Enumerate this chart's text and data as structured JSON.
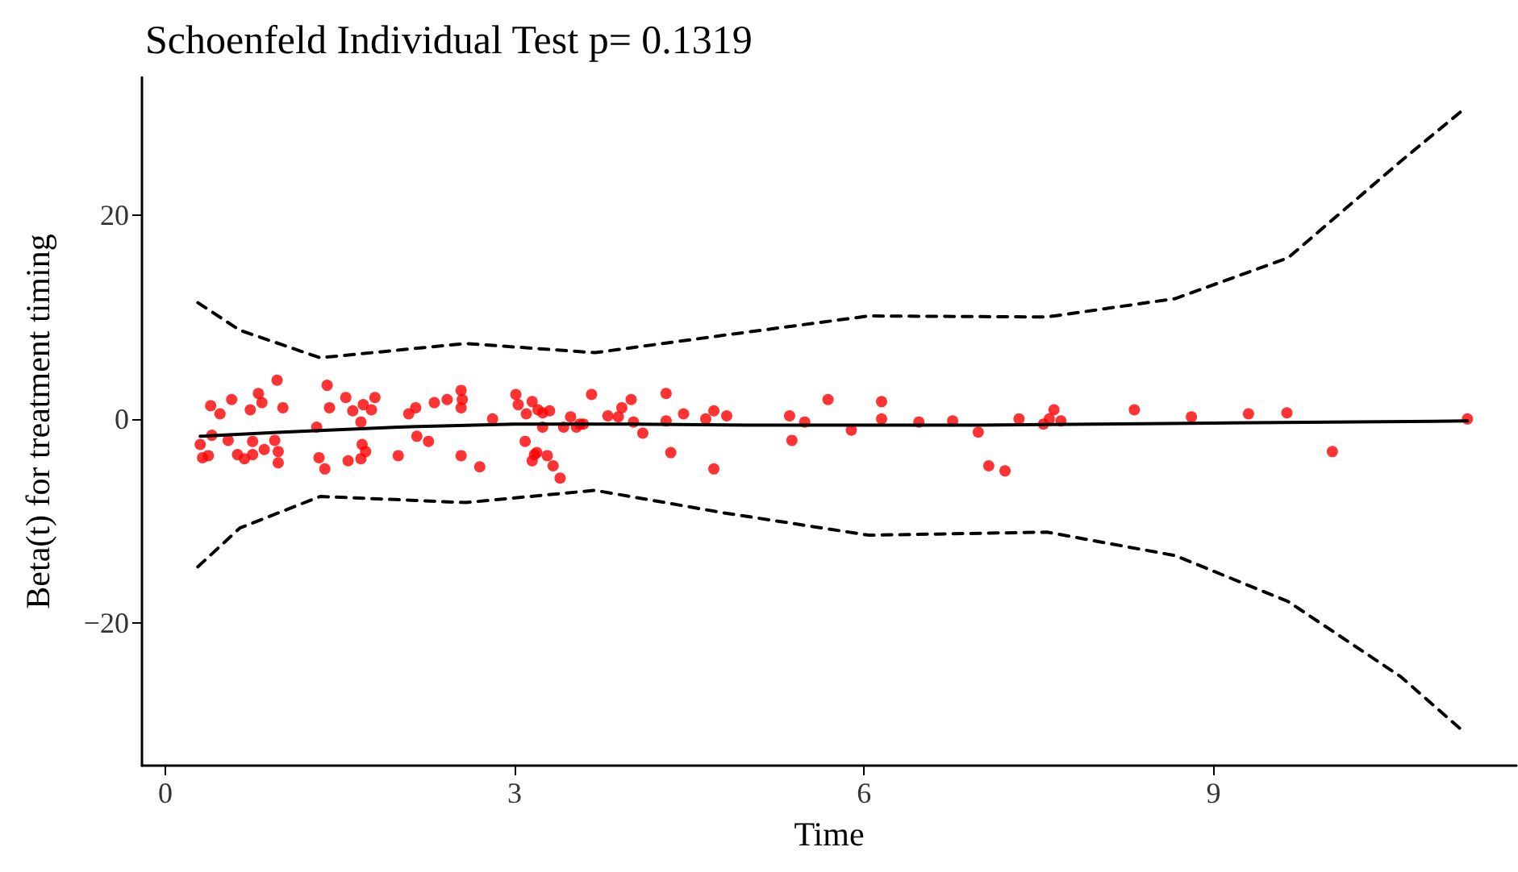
{
  "chart_data": {
    "type": "scatter",
    "title": "Schoenfeld Individual Test p= 0.1319",
    "xlabel": "Time",
    "ylabel": "Beta(t) for treatment timing",
    "xlim": [
      -0.2,
      11.6
    ],
    "ylim": [
      -34,
      33.5
    ],
    "xticks": [
      0,
      3,
      6,
      9
    ],
    "yticks": [
      {
        "value": -20,
        "label": "−20"
      },
      0,
      20
    ],
    "grid": false,
    "series": [
      {
        "color": "#ff0000",
        "marker": "circle",
        "x": [
          0.39,
          0.47,
          0.57,
          0.73,
          0.8,
          0.83,
          0.96,
          1.01,
          0.4,
          0.3,
          0.32,
          0.37,
          0.54,
          0.62,
          0.68,
          0.75,
          0.75,
          0.85,
          0.94,
          0.97,
          0.97,
          1.3,
          1.32,
          1.37,
          1.39,
          1.41,
          1.55,
          1.61,
          1.68,
          1.7,
          1.77,
          1.8,
          1.69,
          1.72,
          1.57,
          1.68,
          2.0,
          2.09,
          2.15,
          2.16,
          2.26,
          2.31,
          2.42,
          2.54,
          2.55,
          2.54,
          2.54,
          2.7,
          2.81,
          3.01,
          3.03,
          3.15,
          3.1,
          3.2,
          3.09,
          3.17,
          3.15,
          3.24,
          3.24,
          3.3,
          3.19,
          3.28,
          3.33,
          3.39,
          3.42,
          3.48,
          3.53,
          3.56,
          3.59,
          3.66,
          3.8,
          3.89,
          3.92,
          4.0,
          4.02,
          4.1,
          4.3,
          4.3,
          4.34,
          4.45,
          4.64,
          4.71,
          4.82,
          4.71,
          5.36,
          5.38,
          5.49,
          5.69,
          5.89,
          6.15,
          6.15,
          6.47,
          6.76,
          6.98,
          7.07,
          7.21,
          7.33,
          7.54,
          7.59,
          7.63,
          7.69,
          8.32,
          8.81,
          9.3,
          9.63,
          10.02,
          11.18
        ],
        "values": [
          1.3,
          0.5,
          1.9,
          0.9,
          2.5,
          1.6,
          3.8,
          1.1,
          -1.6,
          -2.5,
          -3.8,
          -3.6,
          -2.1,
          -3.5,
          -3.9,
          -2.2,
          -3.5,
          -3.0,
          -2.1,
          -3.2,
          -4.3,
          -0.8,
          -3.8,
          -4.9,
          3.3,
          1.1,
          2.1,
          0.8,
          -0.3,
          1.4,
          0.9,
          2.1,
          -2.5,
          -3.2,
          -4.1,
          -3.9,
          -3.6,
          0.5,
          1.1,
          -1.7,
          -2.2,
          1.6,
          1.9,
          2.8,
          1.9,
          1.1,
          -3.6,
          -4.7,
          0,
          2.4,
          1.4,
          1.7,
          0.5,
          0.9,
          -2.2,
          -3.5,
          -4.1,
          -0.8,
          0.6,
          0.8,
          -3.3,
          -3.6,
          -4.6,
          -5.8,
          -0.8,
          0.2,
          -0.8,
          -0.5,
          -0.5,
          2.4,
          0.3,
          0.2,
          1.1,
          1.9,
          -0.3,
          -1.4,
          2.5,
          -0.2,
          -3.3,
          0.5,
          0,
          0.8,
          0.3,
          -4.9,
          0.3,
          -2.1,
          -0.3,
          1.9,
          -1.1,
          1.7,
          0,
          -0.3,
          -0.2,
          -1.3,
          -4.6,
          -5.1,
          0,
          -0.5,
          0,
          0.9,
          -0.2,
          0.9,
          0.2,
          0.5,
          0.6,
          -3.2,
          0
        ]
      },
      {
        "type": "line",
        "color": "#000000",
        "line_style": "solid",
        "x": [
          0.3,
          1,
          2,
          3,
          4,
          5,
          6,
          7,
          8,
          9,
          10,
          11.18
        ],
        "values": [
          -1.7,
          -1.3,
          -0.8,
          -0.5,
          -0.5,
          -0.6,
          -0.6,
          -0.6,
          -0.5,
          -0.4,
          -0.3,
          -0.2
        ]
      },
      {
        "type": "line",
        "color": "#000000",
        "line_style": "dashed",
        "x": [
          0.28,
          0.64,
          1.33,
          2.58,
          3.69,
          4.79,
          6.04,
          7.57,
          8.67,
          9.64,
          10.61,
          11.13
        ],
        "values": [
          11.4,
          8.7,
          6.0,
          7.4,
          6.5,
          8.2,
          10.1,
          10.0,
          11.8,
          15.8,
          25.3,
          30.2
        ]
      },
      {
        "type": "line",
        "color": "#000000",
        "line_style": "dashed",
        "x": [
          0.28,
          0.64,
          1.33,
          2.58,
          3.69,
          4.79,
          6.04,
          7.57,
          8.67,
          9.64,
          10.61,
          11.13
        ],
        "values": [
          -14.5,
          -10.7,
          -7.6,
          -8.2,
          -7.0,
          -9.2,
          -11.4,
          -11.1,
          -13.4,
          -17.9,
          -25.3,
          -30.5
        ]
      }
    ]
  }
}
